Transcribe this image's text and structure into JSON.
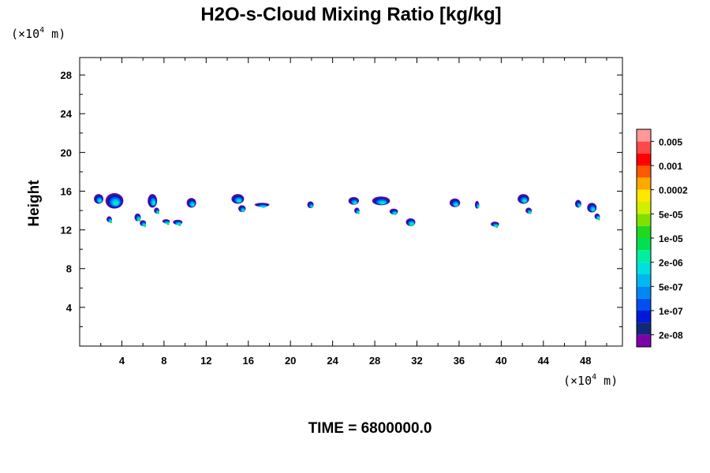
{
  "chart_data": {
    "type": "heatmap",
    "title": "H2O-s-Cloud Mixing Ratio [kg/kg]",
    "ylabel": "Height",
    "x_unit": "(×10",
    "x_unit_exp": "4",
    "x_unit_suffix": " m)",
    "y_unit": "(×10",
    "y_unit_exp": "4",
    "y_unit_suffix": " m)",
    "xlim": [
      0,
      51.5
    ],
    "ylim": [
      0,
      29.8
    ],
    "xticks": [
      4,
      8,
      12,
      16,
      20,
      24,
      28,
      32,
      36,
      40,
      44,
      48
    ],
    "yticks": [
      4,
      8,
      12,
      16,
      20,
      24,
      28
    ],
    "time_label": "TIME = 6800000.0",
    "colorbar": {
      "colors": [
        "#8000a8",
        "#102878",
        "#0018d8",
        "#0050f0",
        "#0088f0",
        "#00b8f0",
        "#00e0e0",
        "#00f0a0",
        "#00e050",
        "#20d820",
        "#80e000",
        "#d0f000",
        "#ffe800",
        "#ffa800",
        "#ff5800",
        "#ff0000",
        "#ff4848",
        "#ff9898"
      ],
      "labels": [
        "2e-08",
        "1e-07",
        "5e-07",
        "2e-06",
        "1e-05",
        "5e-05",
        "0.0002",
        "0.001",
        "0.005"
      ]
    },
    "clouds": [
      {
        "x": 1.8,
        "y": 15.2,
        "w": 0.9,
        "h": 1.0,
        "level": 7
      },
      {
        "x": 3.3,
        "y": 15.0,
        "w": 1.7,
        "h": 1.6,
        "level": 7
      },
      {
        "x": 2.8,
        "y": 13.1,
        "w": 0.5,
        "h": 0.6,
        "level": 9
      },
      {
        "x": 5.5,
        "y": 13.3,
        "w": 0.6,
        "h": 0.8,
        "level": 9
      },
      {
        "x": 6.0,
        "y": 12.7,
        "w": 0.6,
        "h": 0.6,
        "level": 9
      },
      {
        "x": 6.9,
        "y": 15.0,
        "w": 0.9,
        "h": 1.4,
        "level": 7
      },
      {
        "x": 7.3,
        "y": 14.0,
        "w": 0.5,
        "h": 0.6,
        "level": 8
      },
      {
        "x": 8.2,
        "y": 12.9,
        "w": 0.7,
        "h": 0.4,
        "level": 9
      },
      {
        "x": 9.3,
        "y": 12.8,
        "w": 0.9,
        "h": 0.5,
        "level": 9
      },
      {
        "x": 10.6,
        "y": 14.8,
        "w": 0.9,
        "h": 1.0,
        "level": 7
      },
      {
        "x": 15.0,
        "y": 15.2,
        "w": 1.2,
        "h": 1.0,
        "level": 7
      },
      {
        "x": 15.4,
        "y": 14.2,
        "w": 0.7,
        "h": 0.7,
        "level": 8
      },
      {
        "x": 17.3,
        "y": 14.6,
        "w": 1.4,
        "h": 0.4,
        "level": 7
      },
      {
        "x": 21.9,
        "y": 14.6,
        "w": 0.6,
        "h": 0.7,
        "level": 7
      },
      {
        "x": 26.0,
        "y": 15.0,
        "w": 1.0,
        "h": 0.8,
        "level": 7
      },
      {
        "x": 26.3,
        "y": 14.0,
        "w": 0.5,
        "h": 0.6,
        "level": 8
      },
      {
        "x": 28.6,
        "y": 15.0,
        "w": 1.7,
        "h": 0.9,
        "level": 7
      },
      {
        "x": 29.8,
        "y": 13.9,
        "w": 0.8,
        "h": 0.6,
        "level": 8
      },
      {
        "x": 31.4,
        "y": 12.8,
        "w": 0.9,
        "h": 0.8,
        "level": 9
      },
      {
        "x": 35.6,
        "y": 14.8,
        "w": 1.0,
        "h": 0.9,
        "level": 7
      },
      {
        "x": 37.7,
        "y": 14.6,
        "w": 0.4,
        "h": 0.8,
        "level": 7
      },
      {
        "x": 39.4,
        "y": 12.6,
        "w": 0.8,
        "h": 0.5,
        "level": 9
      },
      {
        "x": 42.1,
        "y": 15.2,
        "w": 1.1,
        "h": 1.0,
        "level": 7
      },
      {
        "x": 42.6,
        "y": 14.0,
        "w": 0.6,
        "h": 0.6,
        "level": 8
      },
      {
        "x": 47.3,
        "y": 14.7,
        "w": 0.6,
        "h": 0.8,
        "level": 7
      },
      {
        "x": 48.6,
        "y": 14.3,
        "w": 0.9,
        "h": 1.0,
        "level": 7
      },
      {
        "x": 49.1,
        "y": 13.4,
        "w": 0.5,
        "h": 0.6,
        "level": 9
      }
    ]
  }
}
